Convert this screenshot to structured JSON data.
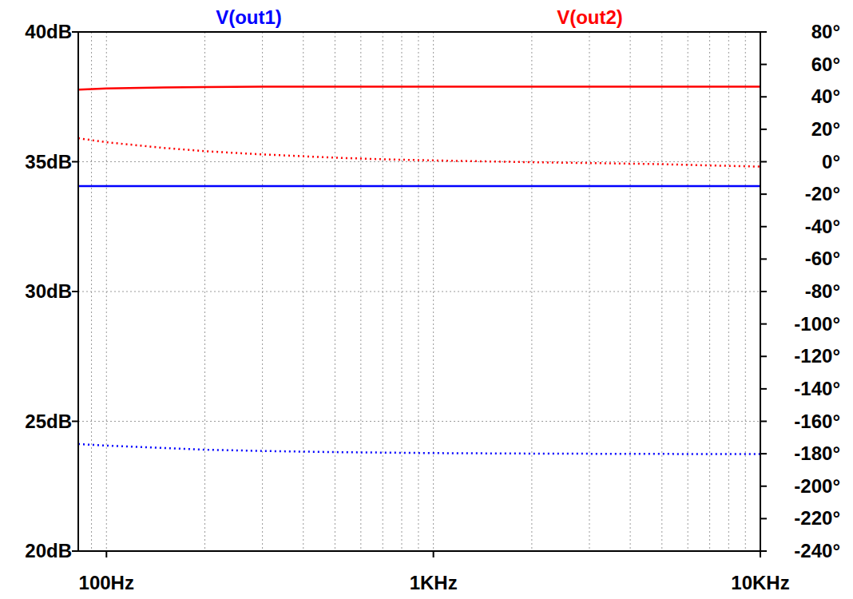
{
  "chart_data": {
    "type": "line",
    "log": "x",
    "grid": true,
    "x": [
      82,
      100,
      150,
      200,
      300,
      500,
      700,
      1000,
      2000,
      3000,
      5000,
      7000,
      10000
    ],
    "xlim": [
      82,
      10000
    ],
    "xticks": [
      {
        "value": 100,
        "label": "100Hz"
      },
      {
        "value": 1000,
        "label": "1KHz"
      },
      {
        "value": 10000,
        "label": "10KHz"
      }
    ],
    "ylim": [
      20,
      40
    ],
    "yticks": [
      {
        "value": 20,
        "label": "20dB"
      },
      {
        "value": 25,
        "label": "25dB"
      },
      {
        "value": 30,
        "label": "30dB"
      },
      {
        "value": 35,
        "label": "35dB"
      },
      {
        "value": 40,
        "label": "40dB"
      }
    ],
    "y2lim": [
      -240,
      80
    ],
    "y2ticks": [
      {
        "value": 80,
        "label": "80°"
      },
      {
        "value": 60,
        "label": "60°"
      },
      {
        "value": 40,
        "label": "40°"
      },
      {
        "value": 20,
        "label": "20°"
      },
      {
        "value": 0,
        "label": "0°"
      },
      {
        "value": -20,
        "label": "-20°"
      },
      {
        "value": -40,
        "label": "-40°"
      },
      {
        "value": -60,
        "label": "-60°"
      },
      {
        "value": -80,
        "label": "-80°"
      },
      {
        "value": -100,
        "label": "-100°"
      },
      {
        "value": -120,
        "label": "-120°"
      },
      {
        "value": -140,
        "label": "-140°"
      },
      {
        "value": -160,
        "label": "-160°"
      },
      {
        "value": -180,
        "label": "-180°"
      },
      {
        "value": -200,
        "label": "-200°"
      },
      {
        "value": -220,
        "label": "-220°"
      },
      {
        "value": -240,
        "label": "-240°"
      }
    ],
    "series": [
      {
        "name": "V(out1)",
        "color": "#0000ff",
        "line_style": "solid",
        "values": [
          34.06,
          34.06,
          34.06,
          34.06,
          34.06,
          34.06,
          34.06,
          34.06,
          34.06,
          34.06,
          34.06,
          34.06,
          34.06
        ]
      },
      {
        "name": "V(out2)",
        "color": "#ff0000",
        "line_style": "solid",
        "values": [
          37.78,
          37.82,
          37.86,
          37.88,
          37.89,
          37.89,
          37.89,
          37.89,
          37.89,
          37.89,
          37.89,
          37.89,
          37.89
        ]
      },
      {
        "color": "#0000ff",
        "line_style": "dotted",
        "axis": "y2",
        "values": [
          -174,
          -175,
          -176.5,
          -177.5,
          -178.3,
          -179,
          -179.3,
          -179.6,
          -179.9,
          -180,
          -180.1,
          -180.2,
          -180.2
        ]
      },
      {
        "color": "#ff0000",
        "line_style": "dotted",
        "axis": "y2",
        "values": [
          14.5,
          12,
          8.5,
          6.5,
          4.5,
          2.5,
          1.5,
          0.8,
          -0.3,
          -0.8,
          -1.5,
          -2.3,
          -3
        ]
      }
    ]
  }
}
